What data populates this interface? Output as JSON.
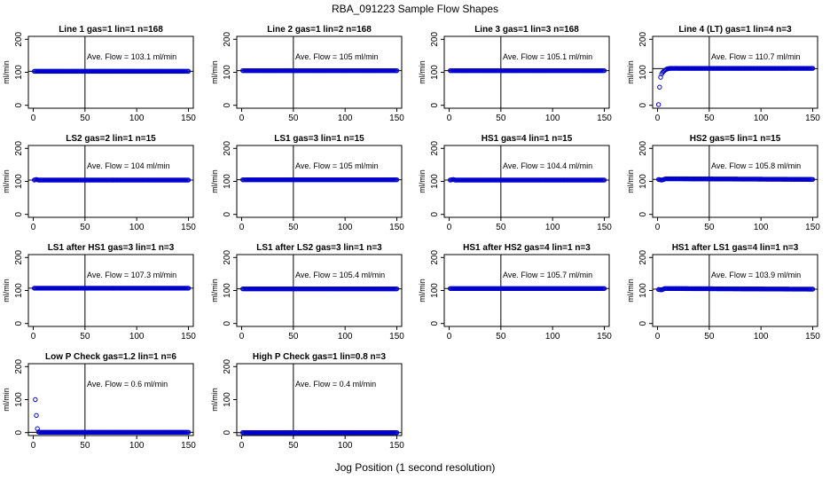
{
  "figure": {
    "title": "RBA_091223  Sample Flow Shapes",
    "xlabel": "Jog Position (1 second resolution)",
    "point_color": "#0000cc",
    "line_color": "#000000"
  },
  "chart_data": [
    {
      "type": "scatter",
      "title": "Line 1 gas=1 lin=1 n=168",
      "ylabel": "ml/min",
      "annotation": "Ave. Flow =  103.1  ml/min",
      "xlim": [
        0,
        150
      ],
      "ylim": [
        0,
        200
      ],
      "xticks": [
        0,
        50,
        100,
        150
      ],
      "yticks": [
        0,
        100,
        200
      ],
      "vline": 50,
      "hline": 103,
      "series": [
        {
          "x": [
            1,
            150
          ],
          "y": [
            103,
            103
          ]
        }
      ]
    },
    {
      "type": "scatter",
      "title": "Line 2 gas=1 lin=2 n=168",
      "ylabel": "ml/min",
      "annotation": "Ave. Flow =  105  ml/min",
      "xlim": [
        0,
        150
      ],
      "ylim": [
        0,
        200
      ],
      "xticks": [
        0,
        50,
        100,
        150
      ],
      "yticks": [
        0,
        100,
        200
      ],
      "vline": 50,
      "hline": 105,
      "series": [
        {
          "x": [
            1,
            150
          ],
          "y": [
            105,
            105
          ]
        }
      ]
    },
    {
      "type": "scatter",
      "title": "Line 3 gas=1 lin=3 n=168",
      "ylabel": "ml/min",
      "annotation": "Ave. Flow =  105.1  ml/min",
      "xlim": [
        0,
        150
      ],
      "ylim": [
        0,
        200
      ],
      "xticks": [
        0,
        50,
        100,
        150
      ],
      "yticks": [
        0,
        100,
        200
      ],
      "vline": 50,
      "hline": 105,
      "series": [
        {
          "x": [
            1,
            150
          ],
          "y": [
            105,
            105
          ]
        }
      ]
    },
    {
      "type": "scatter",
      "title": "Line 4 (LT) gas=1 lin=4 n=3",
      "ylabel": "ml/min",
      "annotation": "Ave. Flow =  110.7  ml/min",
      "xlim": [
        0,
        150
      ],
      "ylim": [
        0,
        200
      ],
      "xticks": [
        0,
        50,
        100,
        150
      ],
      "yticks": [
        0,
        100,
        200
      ],
      "vline": 50,
      "hline": 111,
      "series": [
        {
          "x": [
            1,
            2,
            3,
            4,
            5,
            7,
            9,
            12,
            150
          ],
          "y": [
            2,
            55,
            85,
            95,
            100,
            106,
            110,
            112,
            112
          ]
        }
      ]
    },
    {
      "type": "scatter",
      "title": "LS2 gas=2 lin=1 n=15",
      "ylabel": "ml/min",
      "annotation": "Ave. Flow =  104  ml/min",
      "xlim": [
        0,
        150
      ],
      "ylim": [
        0,
        200
      ],
      "xticks": [
        0,
        50,
        100,
        150
      ],
      "yticks": [
        0,
        100,
        200
      ],
      "vline": 50,
      "hline": 104,
      "series": [
        {
          "x": [
            1,
            3,
            5,
            150
          ],
          "y": [
            104,
            106,
            104,
            104
          ]
        }
      ]
    },
    {
      "type": "scatter",
      "title": "LS1 gas=3 lin=1 n=15",
      "ylabel": "ml/min",
      "annotation": "Ave. Flow =  105  ml/min",
      "xlim": [
        0,
        150
      ],
      "ylim": [
        0,
        200
      ],
      "xticks": [
        0,
        50,
        100,
        150
      ],
      "yticks": [
        0,
        100,
        200
      ],
      "vline": 50,
      "hline": 105,
      "series": [
        {
          "x": [
            1,
            150
          ],
          "y": [
            105,
            105
          ]
        }
      ]
    },
    {
      "type": "scatter",
      "title": "HS1 gas=4 lin=1 n=15",
      "ylabel": "ml/min",
      "annotation": "Ave. Flow =  104.4  ml/min",
      "xlim": [
        0,
        150
      ],
      "ylim": [
        0,
        200
      ],
      "xticks": [
        0,
        50,
        100,
        150
      ],
      "yticks": [
        0,
        100,
        200
      ],
      "vline": 50,
      "hline": 104,
      "series": [
        {
          "x": [
            1,
            4,
            6,
            150
          ],
          "y": [
            104,
            106,
            104,
            104
          ]
        }
      ]
    },
    {
      "type": "scatter",
      "title": "HS2 gas=5 lin=1 n=15",
      "ylabel": "ml/min",
      "annotation": "Ave. Flow =  105.8  ml/min",
      "xlim": [
        0,
        150
      ],
      "ylim": [
        0,
        200
      ],
      "xticks": [
        0,
        50,
        100,
        150
      ],
      "yticks": [
        0,
        100,
        200
      ],
      "vline": 50,
      "hline": 106,
      "series": [
        {
          "x": [
            1,
            4,
            8,
            150
          ],
          "y": [
            106,
            104,
            108,
            106
          ]
        }
      ]
    },
    {
      "type": "scatter",
      "title": "LS1 after HS1 gas=3 lin=1 n=3",
      "ylabel": "ml/min",
      "annotation": "Ave. Flow =  107.3  ml/min",
      "xlim": [
        0,
        150
      ],
      "ylim": [
        0,
        200
      ],
      "xticks": [
        0,
        50,
        100,
        150
      ],
      "yticks": [
        0,
        100,
        200
      ],
      "vline": 50,
      "hline": 107,
      "series": [
        {
          "x": [
            1,
            150
          ],
          "y": [
            107,
            107
          ]
        }
      ]
    },
    {
      "type": "scatter",
      "title": "LS1 after LS2 gas=3 lin=1 n=3",
      "ylabel": "ml/min",
      "annotation": "Ave. Flow =  105.4  ml/min",
      "xlim": [
        0,
        150
      ],
      "ylim": [
        0,
        200
      ],
      "xticks": [
        0,
        50,
        100,
        150
      ],
      "yticks": [
        0,
        100,
        200
      ],
      "vline": 50,
      "hline": 105,
      "series": [
        {
          "x": [
            1,
            150
          ],
          "y": [
            105,
            105
          ]
        }
      ]
    },
    {
      "type": "scatter",
      "title": "HS1 after HS2 gas=4 lin=1 n=3",
      "ylabel": "ml/min",
      "annotation": "Ave. Flow =  105.7  ml/min",
      "xlim": [
        0,
        150
      ],
      "ylim": [
        0,
        200
      ],
      "xticks": [
        0,
        50,
        100,
        150
      ],
      "yticks": [
        0,
        100,
        200
      ],
      "vline": 50,
      "hline": 106,
      "series": [
        {
          "x": [
            1,
            150
          ],
          "y": [
            106,
            106
          ]
        }
      ]
    },
    {
      "type": "scatter",
      "title": "HS1 after LS1 gas=4 lin=1 n=3",
      "ylabel": "ml/min",
      "annotation": "Ave. Flow =  103.9  ml/min",
      "xlim": [
        0,
        150
      ],
      "ylim": [
        0,
        200
      ],
      "xticks": [
        0,
        50,
        100,
        150
      ],
      "yticks": [
        0,
        100,
        200
      ],
      "vline": 50,
      "hline": 104,
      "series": [
        {
          "x": [
            1,
            4,
            7,
            150
          ],
          "y": [
            103,
            102,
            106,
            104
          ]
        }
      ]
    },
    {
      "type": "scatter",
      "title": "Low P Check gas=1.2 lin=1 n=6",
      "ylabel": "ml/min",
      "annotation": "Ave. Flow =  0.6  ml/min",
      "xlim": [
        0,
        150
      ],
      "ylim": [
        0,
        200
      ],
      "xticks": [
        0,
        50,
        100,
        150
      ],
      "yticks": [
        0,
        100,
        200
      ],
      "vline": 50,
      "hline": 1,
      "series": [
        {
          "x": [
            2,
            3,
            4,
            5,
            6,
            150
          ],
          "y": [
            100,
            52,
            12,
            2,
            1,
            1
          ]
        }
      ]
    },
    {
      "type": "scatter",
      "title": "High P Check gas=1 lin=0.8 n=3",
      "ylabel": "ml/min",
      "annotation": "Ave. Flow =  0.4  ml/min",
      "xlim": [
        0,
        150
      ],
      "ylim": [
        0,
        200
      ],
      "xticks": [
        0,
        50,
        100,
        150
      ],
      "yticks": [
        0,
        100,
        200
      ],
      "vline": 50,
      "hline": 0,
      "series": [
        {
          "x": [
            1,
            150
          ],
          "y": [
            0,
            0
          ]
        }
      ]
    }
  ]
}
